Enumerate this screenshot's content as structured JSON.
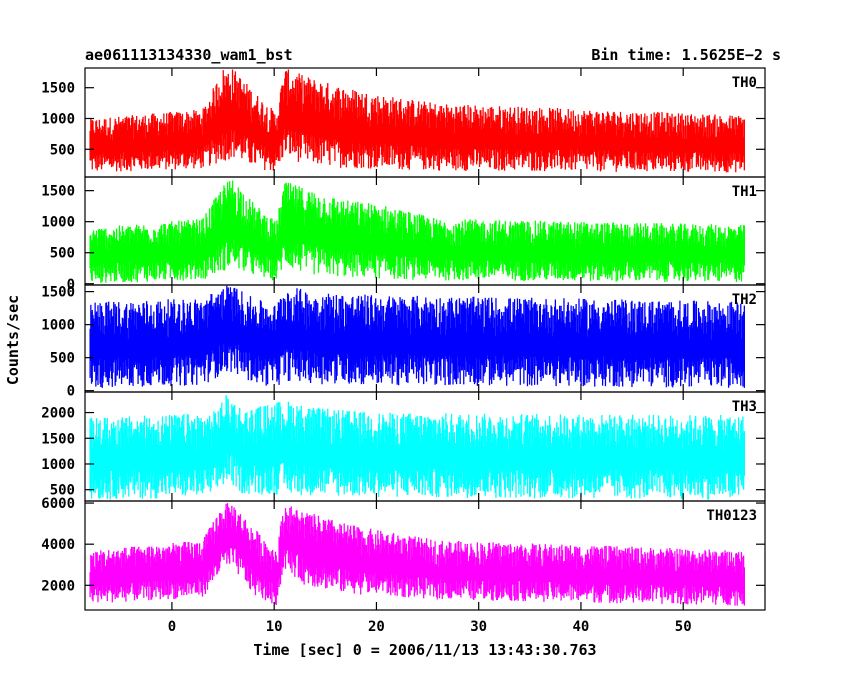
{
  "header": {
    "left_title": "ae061113134330_wam1_bst",
    "right_title": "Bin time: 1.5625E−2 s"
  },
  "chart_data": {
    "type": "line",
    "xlabel": "Time [sec] 0 = 2006/11/13 13:43:30.763",
    "ylabel": "Counts/sec",
    "xlim": [
      -8.5,
      58
    ],
    "x_data_range": [
      -8,
      56
    ],
    "x_ticks": [
      0,
      10,
      20,
      30,
      40,
      50
    ],
    "x_tick_labels": [
      "0",
      "10",
      "20",
      "30",
      "40",
      "50"
    ],
    "panels": [
      {
        "name": "TH0",
        "color": "#ff0000",
        "ylim": [
          50,
          1820
        ],
        "yticks": [
          500,
          1000,
          1500
        ],
        "ytick_labels": [
          "500",
          "1000",
          "1500"
        ],
        "profile": [
          {
            "t": -8,
            "low": 120,
            "high": 1000
          },
          {
            "t": 3,
            "low": 180,
            "high": 1150
          },
          {
            "t": 5,
            "low": 300,
            "high": 1820
          },
          {
            "t": 6,
            "low": 350,
            "high": 1820
          },
          {
            "t": 8,
            "low": 200,
            "high": 1450
          },
          {
            "t": 10.2,
            "low": 120,
            "high": 1100
          },
          {
            "t": 11,
            "low": 380,
            "high": 1820
          },
          {
            "t": 13,
            "low": 250,
            "high": 1700
          },
          {
            "t": 16,
            "low": 200,
            "high": 1550
          },
          {
            "t": 20,
            "low": 180,
            "high": 1400
          },
          {
            "t": 26,
            "low": 150,
            "high": 1250
          },
          {
            "t": 56,
            "low": 120,
            "high": 1050
          }
        ]
      },
      {
        "name": "TH1",
        "color": "#00ff00",
        "ylim": [
          -20,
          1720
        ],
        "yticks": [
          0,
          500,
          1000,
          1500
        ],
        "ytick_labels": [
          "0",
          "500",
          "1000",
          "1500"
        ],
        "profile": [
          {
            "t": -8,
            "low": 0,
            "high": 900
          },
          {
            "t": 3,
            "low": 60,
            "high": 1050
          },
          {
            "t": 5,
            "low": 200,
            "high": 1600
          },
          {
            "t": 6,
            "low": 250,
            "high": 1720
          },
          {
            "t": 8,
            "low": 120,
            "high": 1300
          },
          {
            "t": 10.2,
            "low": 40,
            "high": 1000
          },
          {
            "t": 11,
            "low": 280,
            "high": 1650
          },
          {
            "t": 13,
            "low": 150,
            "high": 1550
          },
          {
            "t": 17,
            "low": 100,
            "high": 1350
          },
          {
            "t": 20,
            "low": 80,
            "high": 1300
          },
          {
            "t": 26,
            "low": 50,
            "high": 1050
          },
          {
            "t": 56,
            "low": 20,
            "high": 950
          }
        ]
      },
      {
        "name": "TH2",
        "color": "#0000ff",
        "ylim": [
          -20,
          1600
        ],
        "yticks": [
          0,
          500,
          1000,
          1500
        ],
        "ytick_labels": [
          "0",
          "500",
          "1000",
          "1500"
        ],
        "profile": [
          {
            "t": -8,
            "low": 30,
            "high": 1350
          },
          {
            "t": 3,
            "low": 80,
            "high": 1400
          },
          {
            "t": 5,
            "low": 250,
            "high": 1600
          },
          {
            "t": 6,
            "low": 280,
            "high": 1600
          },
          {
            "t": 8,
            "low": 100,
            "high": 1400
          },
          {
            "t": 10.2,
            "low": 50,
            "high": 1300
          },
          {
            "t": 11,
            "low": 150,
            "high": 1600
          },
          {
            "t": 14,
            "low": 100,
            "high": 1500
          },
          {
            "t": 20,
            "low": 80,
            "high": 1450
          },
          {
            "t": 56,
            "low": 40,
            "high": 1350
          }
        ]
      },
      {
        "name": "TH3",
        "color": "#00ffff",
        "ylim": [
          280,
          2400
        ],
        "yticks": [
          500,
          1000,
          1500,
          2000
        ],
        "ytick_labels": [
          "500",
          "1000",
          "1500",
          "2000"
        ],
        "profile": [
          {
            "t": -8,
            "low": 300,
            "high": 1900
          },
          {
            "t": 4,
            "low": 350,
            "high": 2000
          },
          {
            "t": 5.5,
            "low": 650,
            "high": 2400
          },
          {
            "t": 7,
            "low": 400,
            "high": 2050
          },
          {
            "t": 11,
            "low": 400,
            "high": 2250
          },
          {
            "t": 14,
            "low": 380,
            "high": 2100
          },
          {
            "t": 20,
            "low": 350,
            "high": 2000
          },
          {
            "t": 56,
            "low": 300,
            "high": 1950
          }
        ]
      },
      {
        "name": "TH0123",
        "color": "#ff00ff",
        "ylim": [
          800,
          6100
        ],
        "yticks": [
          2000,
          4000,
          6000
        ],
        "ytick_labels": [
          "2000",
          "4000",
          "6000"
        ],
        "profile": [
          {
            "t": -8,
            "low": 1100,
            "high": 3700
          },
          {
            "t": 3,
            "low": 1400,
            "high": 4200
          },
          {
            "t": 5,
            "low": 2700,
            "high": 6000
          },
          {
            "t": 6,
            "low": 2800,
            "high": 6000
          },
          {
            "t": 8,
            "low": 1500,
            "high": 4800
          },
          {
            "t": 10.2,
            "low": 1000,
            "high": 3800
          },
          {
            "t": 11,
            "low": 2800,
            "high": 6000
          },
          {
            "t": 13,
            "low": 2000,
            "high": 5600
          },
          {
            "t": 17,
            "low": 1600,
            "high": 5000
          },
          {
            "t": 20,
            "low": 1500,
            "high": 4700
          },
          {
            "t": 26,
            "low": 1300,
            "high": 4200
          },
          {
            "t": 56,
            "low": 1000,
            "high": 3700
          }
        ]
      }
    ]
  }
}
